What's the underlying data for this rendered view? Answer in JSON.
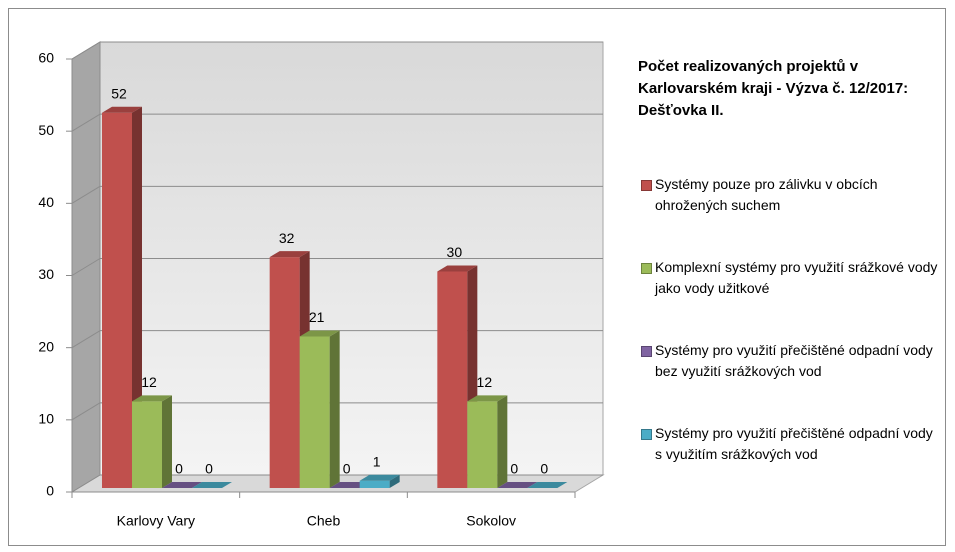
{
  "chart_data": {
    "type": "bar3d",
    "title": "Počet realizovaných projektů v Karlovarském kraji - Výzva č. 12/2017: Dešťovka II.",
    "categories": [
      "Karlovy Vary",
      "Cheb",
      "Sokolov"
    ],
    "series": [
      {
        "name": "Systémy pouze pro zálivku v obcích ohrožených suchem",
        "color": "#c0504d",
        "values": [
          52,
          32,
          30
        ]
      },
      {
        "name": "Komplexní systémy pro využití srážkové vody jako vody užitkové",
        "color": "#9bbb59",
        "values": [
          12,
          21,
          12
        ]
      },
      {
        "name": "Systémy pro využití přečištěné odpadní vody bez využití srážkových vod",
        "color": "#8064a2",
        "values": [
          0,
          0,
          0
        ]
      },
      {
        "name": "Systémy pro využití přečištěné odpadní vody s využitím srážkových vod",
        "color": "#4bacc6",
        "values": [
          0,
          1,
          0
        ]
      }
    ],
    "ylim": [
      0,
      60
    ],
    "yticks": [
      0,
      10,
      20,
      30,
      40,
      50,
      60
    ],
    "grid": true,
    "legend": "right"
  }
}
